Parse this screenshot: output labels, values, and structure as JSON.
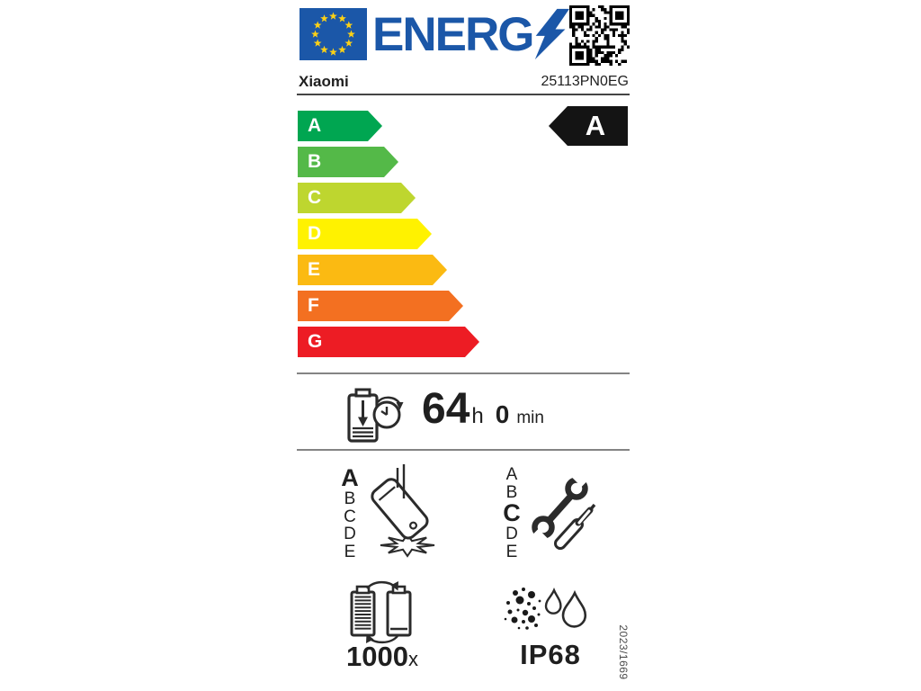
{
  "header": {
    "logo_text": "ENERG",
    "brand": "Xiaomi",
    "model": "25113PN0EG"
  },
  "energy_scale": {
    "grades": [
      {
        "grade": "A",
        "color": "#00a651"
      },
      {
        "grade": "B",
        "color": "#54b948"
      },
      {
        "grade": "C",
        "color": "#bed62f"
      },
      {
        "grade": "D",
        "color": "#fff200"
      },
      {
        "grade": "E",
        "color": "#fbba12"
      },
      {
        "grade": "F",
        "color": "#f37021"
      },
      {
        "grade": "G",
        "color": "#ed1c24"
      }
    ],
    "selected_grade": "A",
    "indicator_color": "#141414"
  },
  "battery_endurance": {
    "hours": "64",
    "hours_unit": "h",
    "minutes": "0",
    "minutes_unit": "min"
  },
  "drop_reliability": {
    "classes": [
      "A",
      "B",
      "C",
      "D",
      "E"
    ],
    "selected": "A"
  },
  "repairability": {
    "classes": [
      "A",
      "B",
      "C",
      "D",
      "E"
    ],
    "selected": "C"
  },
  "battery_cycles": {
    "value": "1000",
    "unit": "x"
  },
  "ingress_protection": {
    "rating": "IP68"
  },
  "regulation": "2023/1669",
  "colors": {
    "eu_blue": "#1b57a8",
    "star_yellow": "#fcd116"
  }
}
